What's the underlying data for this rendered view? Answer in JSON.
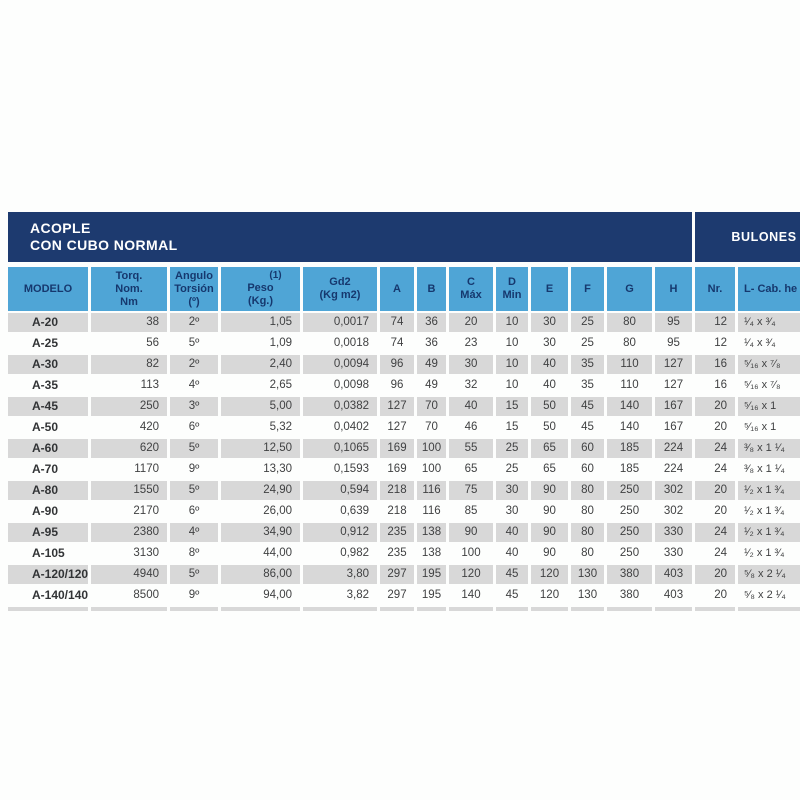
{
  "table": {
    "title_line1": "ACOPLE",
    "title_line2": "CON CUBO NORMAL",
    "bulones_title": "BULONES",
    "headers": {
      "modelo": "MODELO",
      "torq": "Torq.\nNom.\nNm",
      "angulo": "Angulo\nTorsión\n(º)",
      "peso_fn": "(1)",
      "peso": "Peso\n(Kg.)",
      "gd2": "Gd2\n(Kg m2)",
      "a": "A",
      "b": "B",
      "c": "C\nMáx",
      "d": "D\nMin",
      "e": "E",
      "f": "F",
      "g": "G",
      "h": "H",
      "nr": "Nr.",
      "bolt": "L- Cab. he"
    },
    "col_classes": [
      "model",
      "num",
      "ang",
      "num",
      "num",
      "ctr",
      "ctr",
      "ctr",
      "ctr",
      "ctr",
      "ctr",
      "ctr",
      "ctr",
      "num",
      "bolt"
    ],
    "rows": [
      [
        "A-20",
        "38",
        "2º",
        "1,05",
        "0,0017",
        "74",
        "36",
        "20",
        "10",
        "30",
        "25",
        "80",
        "95",
        "12",
        "¹⁄₄ x ³⁄₄"
      ],
      [
        "A-25",
        "56",
        "5º",
        "1,09",
        "0,0018",
        "74",
        "36",
        "23",
        "10",
        "30",
        "25",
        "80",
        "95",
        "12",
        "¹⁄₄ x ³⁄₄"
      ],
      [
        "A-30",
        "82",
        "2º",
        "2,40",
        "0,0094",
        "96",
        "49",
        "30",
        "10",
        "40",
        "35",
        "110",
        "127",
        "16",
        "⁵⁄₁₆ x ⁷⁄₈"
      ],
      [
        "A-35",
        "113",
        "4º",
        "2,65",
        "0,0098",
        "96",
        "49",
        "32",
        "10",
        "40",
        "35",
        "110",
        "127",
        "16",
        "⁵⁄₁₆ x ⁷⁄₈"
      ],
      [
        "A-45",
        "250",
        "3º",
        "5,00",
        "0,0382",
        "127",
        "70",
        "40",
        "15",
        "50",
        "45",
        "140",
        "167",
        "20",
        "⁵⁄₁₆ x 1"
      ],
      [
        "A-50",
        "420",
        "6º",
        "5,32",
        "0,0402",
        "127",
        "70",
        "46",
        "15",
        "50",
        "45",
        "140",
        "167",
        "20",
        "⁵⁄₁₆ x 1"
      ],
      [
        "A-60",
        "620",
        "5º",
        "12,50",
        "0,1065",
        "169",
        "100",
        "55",
        "25",
        "65",
        "60",
        "185",
        "224",
        "24",
        "³⁄₈ x 1 ¹⁄₄"
      ],
      [
        "A-70",
        "1170",
        "9º",
        "13,30",
        "0,1593",
        "169",
        "100",
        "65",
        "25",
        "65",
        "60",
        "185",
        "224",
        "24",
        "³⁄₈ x 1 ¹⁄₄"
      ],
      [
        "A-80",
        "1550",
        "5º",
        "24,90",
        "0,594",
        "218",
        "116",
        "75",
        "30",
        "90",
        "80",
        "250",
        "302",
        "20",
        "¹⁄₂ x 1 ³⁄₄"
      ],
      [
        "A-90",
        "2170",
        "6º",
        "26,00",
        "0,639",
        "218",
        "116",
        "85",
        "30",
        "90",
        "80",
        "250",
        "302",
        "20",
        "¹⁄₂ x 1 ³⁄₄"
      ],
      [
        "A-95",
        "2380",
        "4º",
        "34,90",
        "0,912",
        "235",
        "138",
        "90",
        "40",
        "90",
        "80",
        "250",
        "330",
        "24",
        "¹⁄₂ x 1 ³⁄₄"
      ],
      [
        "A-105",
        "3130",
        "8º",
        "44,00",
        "0,982",
        "235",
        "138",
        "100",
        "40",
        "90",
        "80",
        "250",
        "330",
        "24",
        "¹⁄₂ x 1 ³⁄₄"
      ],
      [
        "A-120/120",
        "4940",
        "5º",
        "86,00",
        "3,80",
        "297",
        "195",
        "120",
        "45",
        "120",
        "130",
        "380",
        "403",
        "20",
        "⁵⁄₈ x 2 ¹⁄₄"
      ],
      [
        "A-140/140",
        "8500",
        "9º",
        "94,00",
        "3,82",
        "297",
        "195",
        "140",
        "45",
        "120",
        "130",
        "380",
        "403",
        "20",
        "⁵⁄₈ x 2 ¹⁄₄"
      ]
    ],
    "colors": {
      "band_blue": "#1d3a6f",
      "header_blue": "#4fa5d6",
      "header_text": "#16386e",
      "row_gray": "#d8d8d8"
    }
  }
}
